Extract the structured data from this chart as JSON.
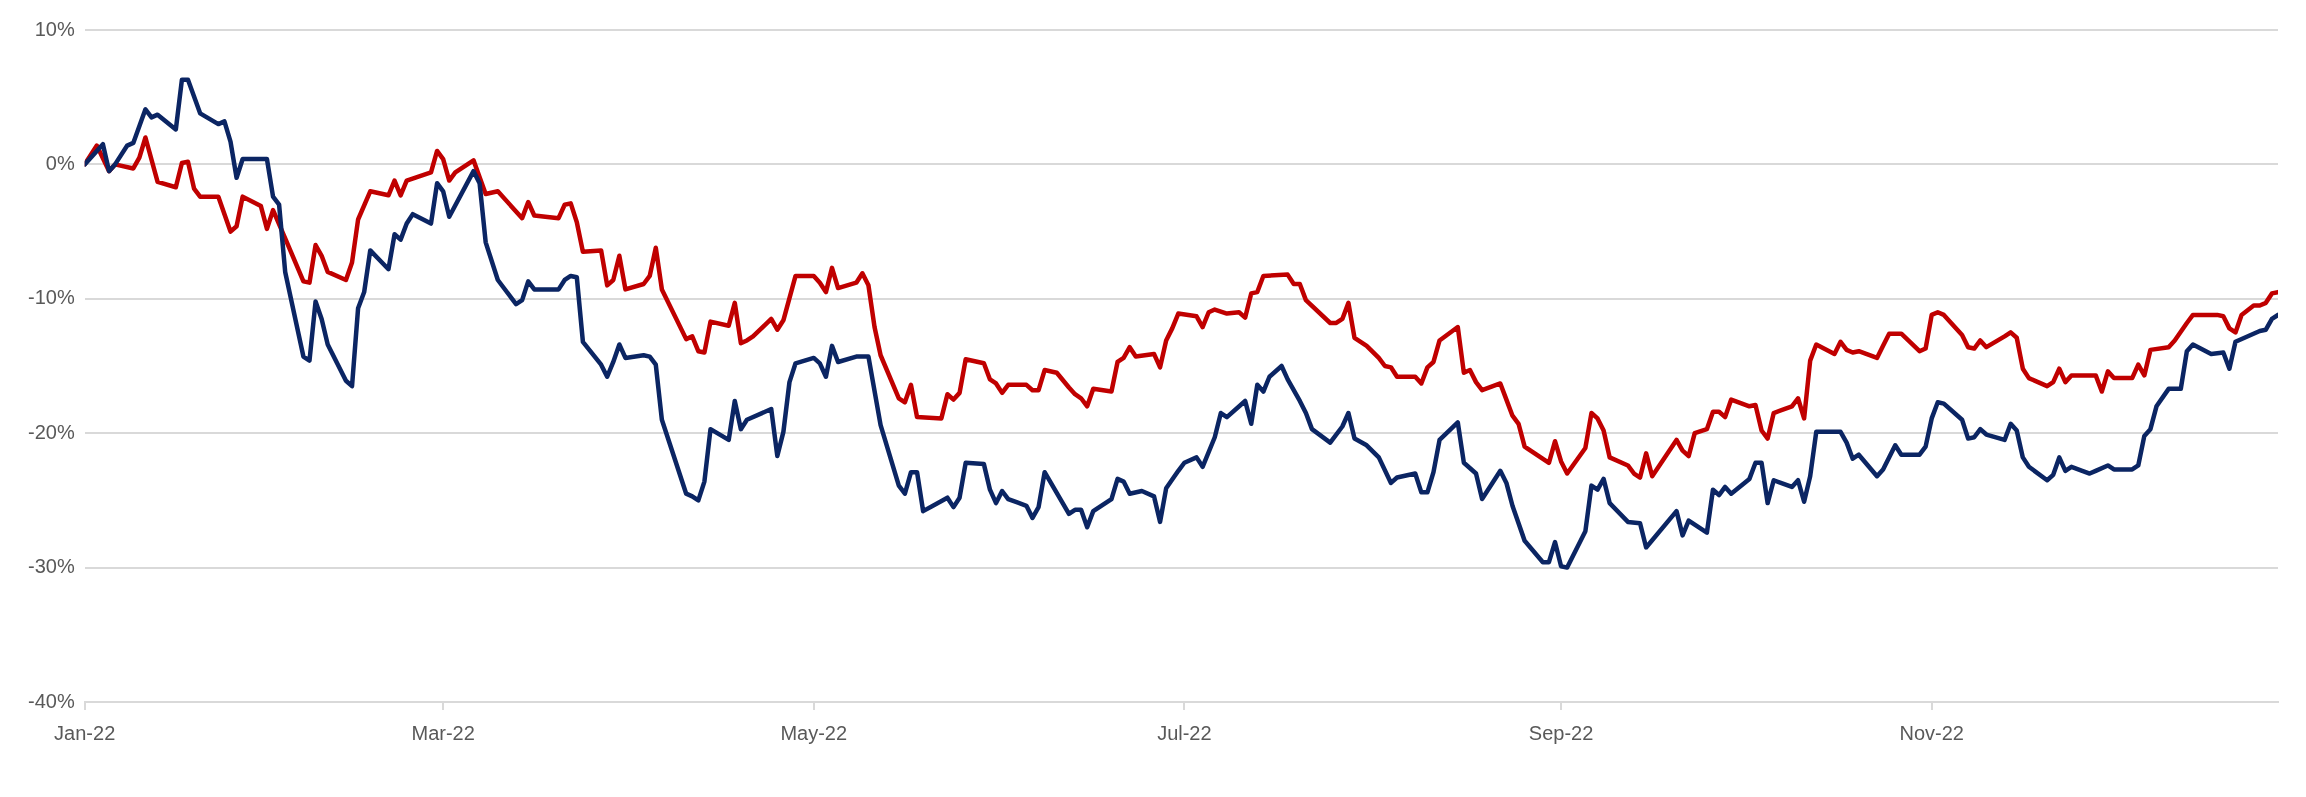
{
  "chart_data": {
    "type": "line",
    "marker": "none",
    "grid": "y",
    "legend": false,
    "xlim": [
      "2022-01-01",
      "2022-12-28"
    ],
    "xticks": [
      {
        "value": "2022-01-01",
        "label": "Jan-22"
      },
      {
        "value": "2022-03-01",
        "label": "Mar-22"
      },
      {
        "value": "2022-05-01",
        "label": "May-22"
      },
      {
        "value": "2022-07-01",
        "label": "Jul-22"
      },
      {
        "value": "2022-09-01",
        "label": "Sep-22"
      },
      {
        "value": "2022-11-01",
        "label": "Nov-22"
      }
    ],
    "ylim": [
      -40,
      10
    ],
    "yticks": [
      {
        "value": -40,
        "label": "-40%"
      },
      {
        "value": -30,
        "label": "-30%"
      },
      {
        "value": -20,
        "label": "-20%"
      },
      {
        "value": -10,
        "label": "-10%"
      },
      {
        "value": 0,
        "label": "0%"
      },
      {
        "value": 10,
        "label": "10%"
      }
    ],
    "series": [
      {
        "color": "#0b2563",
        "x": [
          "2022-01-01",
          "2022-01-04",
          "2022-01-05",
          "2022-01-06",
          "2022-01-08",
          "2022-01-09",
          "2022-01-11",
          "2022-01-12",
          "2022-01-13",
          "2022-01-16",
          "2022-01-17",
          "2022-01-18",
          "2022-01-20",
          "2022-01-23",
          "2022-01-24",
          "2022-01-25",
          "2022-01-26",
          "2022-01-27",
          "2022-01-31",
          "2022-02-01",
          "2022-02-02",
          "2022-02-03",
          "2022-02-06",
          "2022-02-07",
          "2022-02-08",
          "2022-02-09",
          "2022-02-10",
          "2022-02-13",
          "2022-02-14",
          "2022-02-15",
          "2022-02-16",
          "2022-02-17",
          "2022-02-20",
          "2022-02-21",
          "2022-02-22",
          "2022-02-23",
          "2022-02-24",
          "2022-02-27",
          "2022-02-28",
          "2022-03-01",
          "2022-03-02",
          "2022-03-06",
          "2022-03-07",
          "2022-03-08",
          "2022-03-10",
          "2022-03-13",
          "2022-03-14",
          "2022-03-15",
          "2022-03-16",
          "2022-03-20",
          "2022-03-21",
          "2022-03-22",
          "2022-03-23",
          "2022-03-24",
          "2022-03-27",
          "2022-03-28",
          "2022-03-29",
          "2022-03-30",
          "2022-03-31",
          "2022-04-03",
          "2022-04-04",
          "2022-04-05",
          "2022-04-06",
          "2022-04-10",
          "2022-04-11",
          "2022-04-12",
          "2022-04-13",
          "2022-04-14",
          "2022-04-17",
          "2022-04-18",
          "2022-04-19",
          "2022-04-20",
          "2022-04-24",
          "2022-04-25",
          "2022-04-26",
          "2022-04-27",
          "2022-04-28",
          "2022-05-01",
          "2022-05-02",
          "2022-05-03",
          "2022-05-04",
          "2022-05-05",
          "2022-05-08",
          "2022-05-10",
          "2022-05-12",
          "2022-05-15",
          "2022-05-16",
          "2022-05-17",
          "2022-05-18",
          "2022-05-19",
          "2022-05-23",
          "2022-05-24",
          "2022-05-25",
          "2022-05-26",
          "2022-05-29",
          "2022-05-30",
          "2022-05-31",
          "2022-06-01",
          "2022-06-02",
          "2022-06-05",
          "2022-06-06",
          "2022-06-07",
          "2022-06-08",
          "2022-06-12",
          "2022-06-13",
          "2022-06-14",
          "2022-06-15",
          "2022-06-16",
          "2022-06-19",
          "2022-06-20",
          "2022-06-21",
          "2022-06-22",
          "2022-06-24",
          "2022-06-26",
          "2022-06-27",
          "2022-06-28",
          "2022-06-30",
          "2022-07-01",
          "2022-07-03",
          "2022-07-04",
          "2022-07-06",
          "2022-07-07",
          "2022-07-08",
          "2022-07-11",
          "2022-07-12",
          "2022-07-13",
          "2022-07-14",
          "2022-07-15",
          "2022-07-17",
          "2022-07-18",
          "2022-07-20",
          "2022-07-21",
          "2022-07-22",
          "2022-07-25",
          "2022-07-27",
          "2022-07-28",
          "2022-07-29",
          "2022-07-31",
          "2022-08-02",
          "2022-08-04",
          "2022-08-05",
          "2022-08-08",
          "2022-08-09",
          "2022-08-10",
          "2022-08-11",
          "2022-08-12",
          "2022-08-15",
          "2022-08-16",
          "2022-08-18",
          "2022-08-19",
          "2022-08-22",
          "2022-08-23",
          "2022-08-24",
          "2022-08-26",
          "2022-08-29",
          "2022-08-30",
          "2022-08-31",
          "2022-09-01",
          "2022-09-02",
          "2022-09-05",
          "2022-09-06",
          "2022-09-07",
          "2022-09-08",
          "2022-09-09",
          "2022-09-12",
          "2022-09-14",
          "2022-09-15",
          "2022-09-20",
          "2022-09-21",
          "2022-09-22",
          "2022-09-25",
          "2022-09-26",
          "2022-09-27",
          "2022-09-28",
          "2022-09-29",
          "2022-10-02",
          "2022-10-03",
          "2022-10-04",
          "2022-10-05",
          "2022-10-06",
          "2022-10-09",
          "2022-10-10",
          "2022-10-11",
          "2022-10-12",
          "2022-10-13",
          "2022-10-17",
          "2022-10-18",
          "2022-10-19",
          "2022-10-20",
          "2022-10-23",
          "2022-10-24",
          "2022-10-26",
          "2022-10-27",
          "2022-10-30",
          "2022-10-31",
          "2022-11-01",
          "2022-11-02",
          "2022-11-03",
          "2022-11-06",
          "2022-11-07",
          "2022-11-08",
          "2022-11-09",
          "2022-11-10",
          "2022-11-13",
          "2022-11-14",
          "2022-11-15",
          "2022-11-16",
          "2022-11-17",
          "2022-11-20",
          "2022-11-21",
          "2022-11-22",
          "2022-11-23",
          "2022-11-24",
          "2022-11-27",
          "2022-11-28",
          "2022-11-30",
          "2022-12-01",
          "2022-12-04",
          "2022-12-05",
          "2022-12-06",
          "2022-12-07",
          "2022-12-08",
          "2022-12-10",
          "2022-12-12",
          "2022-12-13",
          "2022-12-14",
          "2022-12-17",
          "2022-12-19",
          "2022-12-20",
          "2022-12-21",
          "2022-12-25",
          "2022-12-26",
          "2022-12-27",
          "2022-12-28"
        ],
        "values": [
          0,
          1.5,
          -0.5,
          0,
          1.4,
          1.6,
          4.1,
          3.5,
          3.7,
          2.6,
          6.3,
          6.3,
          3.8,
          3.0,
          3.2,
          1.7,
          -1.0,
          0.4,
          0.4,
          -2.4,
          -3.0,
          -8.0,
          -14.3,
          -14.6,
          -10.2,
          -11.5,
          -13.4,
          -16.1,
          -16.5,
          -10.7,
          -9.5,
          -6.4,
          -7.8,
          -5.2,
          -5.6,
          -4.4,
          -3.7,
          -4.4,
          -1.4,
          -2.0,
          -3.9,
          -0.5,
          -1.4,
          -5.8,
          -8.6,
          -10.4,
          -10.1,
          -8.7,
          -9.3,
          -9.3,
          -8.6,
          -8.3,
          -8.4,
          -13.2,
          -14.9,
          -15.8,
          -14.7,
          -13.4,
          -14.4,
          -14.2,
          -14.3,
          -14.9,
          -19.0,
          -24.5,
          -24.7,
          -25.0,
          -23.6,
          -19.7,
          -20.5,
          -17.6,
          -19.7,
          -19.0,
          -18.2,
          -21.7,
          -19.9,
          -16.2,
          -14.8,
          -14.4,
          -14.8,
          -15.8,
          -13.5,
          -14.7,
          -14.3,
          -14.3,
          -19.4,
          -23.9,
          -24.5,
          -22.9,
          -22.9,
          -25.8,
          -24.8,
          -25.5,
          -24.8,
          -22.2,
          -22.3,
          -24.2,
          -25.2,
          -24.3,
          -24.9,
          -25.4,
          -26.3,
          -25.5,
          -22.9,
          -26.0,
          -25.7,
          -25.7,
          -27.0,
          -25.8,
          -24.9,
          -23.4,
          -23.6,
          -24.5,
          -24.3,
          -24.7,
          -26.6,
          -24.1,
          -22.8,
          -22.2,
          -21.8,
          -22.5,
          -20.3,
          -18.5,
          -18.8,
          -17.6,
          -19.3,
          -16.4,
          -16.9,
          -15.8,
          -15.0,
          -16.0,
          -17.6,
          -18.5,
          -19.7,
          -20.7,
          -19.5,
          -18.5,
          -20.4,
          -20.9,
          -21.8,
          -23.7,
          -23.3,
          -23.0,
          -24.4,
          -24.4,
          -22.9,
          -20.5,
          -19.2,
          -22.2,
          -23.0,
          -24.9,
          -22.8,
          -23.7,
          -25.4,
          -28.0,
          -29.6,
          -29.6,
          -28.1,
          -29.9,
          -30.0,
          -27.3,
          -23.9,
          -24.2,
          -23.4,
          -25.2,
          -26.6,
          -26.7,
          -28.5,
          -25.8,
          -27.6,
          -26.5,
          -27.4,
          -24.2,
          -24.6,
          -24.0,
          -24.5,
          -23.4,
          -22.2,
          -22.2,
          -25.2,
          -23.5,
          -24.0,
          -23.5,
          -25.1,
          -23.2,
          -19.9,
          -19.9,
          -20.7,
          -21.9,
          -21.6,
          -23.2,
          -22.7,
          -20.9,
          -21.6,
          -21.6,
          -21.0,
          -18.9,
          -17.7,
          -17.8,
          -19.0,
          -20.4,
          -20.3,
          -19.7,
          -20.1,
          -20.5,
          -19.3,
          -19.8,
          -21.8,
          -22.5,
          -23.5,
          -23.1,
          -21.8,
          -22.8,
          -22.5,
          -23.0,
          -22.8,
          -22.4,
          -22.7,
          -22.7,
          -22.4,
          -20.2,
          -19.7,
          -18.0,
          -16.7,
          -16.7,
          -13.9,
          -13.4,
          -14.1,
          -14.0,
          -15.2,
          -13.2,
          -12.4,
          -12.3,
          -11.5,
          -11.2
        ]
      },
      {
        "color": "#c00000",
        "x": [
          "2022-01-01",
          "2022-01-03",
          "2022-01-05",
          "2022-01-06",
          "2022-01-09",
          "2022-01-10",
          "2022-01-11",
          "2022-01-13",
          "2022-01-16",
          "2022-01-17",
          "2022-01-18",
          "2022-01-19",
          "2022-01-20",
          "2022-01-23",
          "2022-01-25",
          "2022-01-26",
          "2022-01-27",
          "2022-01-30",
          "2022-01-31",
          "2022-02-01",
          "2022-02-03",
          "2022-02-06",
          "2022-02-07",
          "2022-02-08",
          "2022-02-09",
          "2022-02-10",
          "2022-02-13",
          "2022-02-14",
          "2022-02-15",
          "2022-02-17",
          "2022-02-20",
          "2022-02-21",
          "2022-02-22",
          "2022-02-23",
          "2022-02-27",
          "2022-02-28",
          "2022-03-01",
          "2022-03-02",
          "2022-03-03",
          "2022-03-06",
          "2022-03-08",
          "2022-03-10",
          "2022-03-14",
          "2022-03-15",
          "2022-03-16",
          "2022-03-20",
          "2022-03-21",
          "2022-03-22",
          "2022-03-23",
          "2022-03-24",
          "2022-03-27",
          "2022-03-28",
          "2022-03-29",
          "2022-03-30",
          "2022-03-31",
          "2022-04-03",
          "2022-04-04",
          "2022-04-05",
          "2022-04-06",
          "2022-04-10",
          "2022-04-11",
          "2022-04-12",
          "2022-04-13",
          "2022-04-14",
          "2022-04-17",
          "2022-04-18",
          "2022-04-19",
          "2022-04-20",
          "2022-04-21",
          "2022-04-24",
          "2022-04-25",
          "2022-04-26",
          "2022-04-28",
          "2022-05-01",
          "2022-05-02",
          "2022-05-03",
          "2022-05-04",
          "2022-05-05",
          "2022-05-08",
          "2022-05-09",
          "2022-05-10",
          "2022-05-11",
          "2022-05-12",
          "2022-05-15",
          "2022-05-16",
          "2022-05-17",
          "2022-05-18",
          "2022-05-22",
          "2022-05-23",
          "2022-05-24",
          "2022-05-25",
          "2022-05-26",
          "2022-05-29",
          "2022-05-30",
          "2022-05-31",
          "2022-06-01",
          "2022-06-02",
          "2022-06-05",
          "2022-06-06",
          "2022-06-07",
          "2022-06-08",
          "2022-06-10",
          "2022-06-12",
          "2022-06-13",
          "2022-06-14",
          "2022-06-15",
          "2022-06-16",
          "2022-06-19",
          "2022-06-20",
          "2022-06-21",
          "2022-06-22",
          "2022-06-23",
          "2022-06-26",
          "2022-06-27",
          "2022-06-28",
          "2022-06-29",
          "2022-06-30",
          "2022-07-03",
          "2022-07-04",
          "2022-07-05",
          "2022-07-06",
          "2022-07-08",
          "2022-07-10",
          "2022-07-11",
          "2022-07-12",
          "2022-07-13",
          "2022-07-14",
          "2022-07-18",
          "2022-07-19",
          "2022-07-20",
          "2022-07-21",
          "2022-07-25",
          "2022-07-26",
          "2022-07-27",
          "2022-07-28",
          "2022-07-29",
          "2022-07-31",
          "2022-08-02",
          "2022-08-03",
          "2022-08-04",
          "2022-08-05",
          "2022-08-08",
          "2022-08-09",
          "2022-08-10",
          "2022-08-11",
          "2022-08-12",
          "2022-08-15",
          "2022-08-16",
          "2022-08-17",
          "2022-08-18",
          "2022-08-19",
          "2022-08-22",
          "2022-08-23",
          "2022-08-24",
          "2022-08-25",
          "2022-08-26",
          "2022-08-30",
          "2022-08-31",
          "2022-09-01",
          "2022-09-02",
          "2022-09-05",
          "2022-09-06",
          "2022-09-07",
          "2022-09-08",
          "2022-09-09",
          "2022-09-12",
          "2022-09-13",
          "2022-09-14",
          "2022-09-15",
          "2022-09-16",
          "2022-09-20",
          "2022-09-21",
          "2022-09-22",
          "2022-09-23",
          "2022-09-25",
          "2022-09-26",
          "2022-09-27",
          "2022-09-28",
          "2022-09-29",
          "2022-10-02",
          "2022-10-03",
          "2022-10-04",
          "2022-10-05",
          "2022-10-06",
          "2022-10-09",
          "2022-10-10",
          "2022-10-11",
          "2022-10-12",
          "2022-10-13",
          "2022-10-16",
          "2022-10-17",
          "2022-10-18",
          "2022-10-19",
          "2022-10-20",
          "2022-10-23",
          "2022-10-24",
          "2022-10-25",
          "2022-10-27",
          "2022-10-30",
          "2022-10-31",
          "2022-11-01",
          "2022-11-02",
          "2022-11-03",
          "2022-11-06",
          "2022-11-07",
          "2022-11-08",
          "2022-11-09",
          "2022-11-10",
          "2022-11-13",
          "2022-11-14",
          "2022-11-15",
          "2022-11-16",
          "2022-11-17",
          "2022-11-20",
          "2022-11-21",
          "2022-11-22",
          "2022-11-23",
          "2022-11-24",
          "2022-11-28",
          "2022-11-29",
          "2022-11-30",
          "2022-12-01",
          "2022-12-04",
          "2022-12-05",
          "2022-12-06",
          "2022-12-07",
          "2022-12-10",
          "2022-12-11",
          "2022-12-13",
          "2022-12-14",
          "2022-12-18",
          "2022-12-19",
          "2022-12-20",
          "2022-12-21",
          "2022-12-22",
          "2022-12-24",
          "2022-12-25",
          "2022-12-26",
          "2022-12-27",
          "2022-12-28"
        ],
        "values": [
          0,
          1.4,
          -0.5,
          0,
          -0.3,
          0.5,
          2.0,
          -1.3,
          -1.7,
          0.1,
          0.2,
          -1.8,
          -2.4,
          -2.4,
          -5.0,
          -4.6,
          -2.4,
          -3.1,
          -4.8,
          -3.4,
          -5.5,
          -8.7,
          -8.8,
          -6.0,
          -6.8,
          -8.0,
          -8.6,
          -7.3,
          -4.1,
          -2.0,
          -2.3,
          -1.2,
          -2.3,
          -1.2,
          -0.6,
          1.0,
          0.4,
          -1.2,
          -0.6,
          0.3,
          -2.2,
          -2.0,
          -4.0,
          -2.8,
          -3.8,
          -4.0,
          -3.0,
          -2.9,
          -4.3,
          -6.5,
          -6.4,
          -9.0,
          -8.6,
          -6.8,
          -9.3,
          -8.9,
          -8.3,
          -6.2,
          -9.3,
          -13.0,
          -12.8,
          -13.9,
          -14.0,
          -11.7,
          -12.0,
          -10.3,
          -13.3,
          -13.1,
          -12.8,
          -11.5,
          -12.3,
          -11.6,
          -8.3,
          -8.3,
          -8.8,
          -9.5,
          -7.7,
          -9.2,
          -8.8,
          -8.1,
          -9.0,
          -12.1,
          -14.2,
          -17.4,
          -17.7,
          -16.4,
          -18.8,
          -18.9,
          -17.1,
          -17.5,
          -17.0,
          -14.5,
          -14.8,
          -16.0,
          -16.3,
          -17.0,
          -16.4,
          -16.4,
          -16.8,
          -16.8,
          -15.3,
          -15.5,
          -16.6,
          -17.1,
          -17.4,
          -18.0,
          -16.7,
          -16.9,
          -14.7,
          -14.4,
          -13.6,
          -14.3,
          -14.1,
          -15.1,
          -13.1,
          -12.2,
          -11.1,
          -11.3,
          -12.1,
          -11.0,
          -10.8,
          -11.1,
          -11.0,
          -11.4,
          -9.6,
          -9.5,
          -8.3,
          -8.2,
          -8.9,
          -8.9,
          -10.1,
          -11.8,
          -11.8,
          -11.5,
          -10.3,
          -12.9,
          -13.5,
          -14.4,
          -15.0,
          -15.1,
          -15.8,
          -15.8,
          -16.3,
          -15.1,
          -14.7,
          -13.1,
          -12.1,
          -15.5,
          -15.3,
          -16.2,
          -16.8,
          -16.3,
          -17.5,
          -18.7,
          -19.3,
          -21.0,
          -22.2,
          -20.6,
          -22.1,
          -23.0,
          -21.1,
          -18.5,
          -18.9,
          -19.8,
          -21.8,
          -22.4,
          -23.0,
          -23.3,
          -21.5,
          -23.2,
          -20.5,
          -21.3,
          -21.7,
          -20.0,
          -19.7,
          -18.4,
          -18.4,
          -18.8,
          -17.5,
          -18.0,
          -17.9,
          -19.8,
          -20.4,
          -18.5,
          -18.0,
          -17.4,
          -18.9,
          -14.6,
          -13.4,
          -14.1,
          -13.2,
          -13.8,
          -14.0,
          -13.9,
          -14.4,
          -13.5,
          -12.6,
          -12.6,
          -13.9,
          -13.7,
          -11.2,
          -11.0,
          -11.2,
          -12.7,
          -13.6,
          -13.7,
          -13.1,
          -13.6,
          -12.8,
          -12.5,
          -12.9,
          -15.2,
          -15.9,
          -16.5,
          -16.2,
          -15.2,
          -16.2,
          -15.7,
          -15.7,
          -16.9,
          -15.4,
          -15.9,
          -15.9,
          -14.9,
          -15.7,
          -13.8,
          -13.6,
          -13.1,
          -11.8,
          -11.2,
          -11.2,
          -11.3,
          -12.2,
          -12.5,
          -11.2,
          -10.5,
          -10.5,
          -10.3,
          -9.6,
          -9.5
        ]
      }
    ]
  }
}
